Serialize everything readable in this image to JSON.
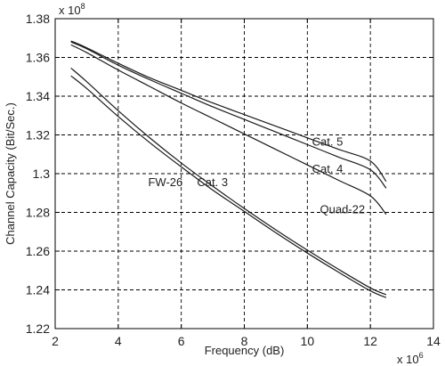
{
  "chart_data": {
    "type": "line",
    "title": "",
    "xlabel": "Frequency (dB)",
    "ylabel": "Channel Capacity (Bit/Sec.)",
    "x_multiplier_base": "x 10",
    "x_multiplier_exp": "6",
    "y_multiplier_base": "x 10",
    "y_multiplier_exp": "8",
    "xlim": [
      2,
      14
    ],
    "ylim": [
      1.22,
      1.38
    ],
    "x_ticks": [
      2,
      4,
      6,
      8,
      10,
      12,
      14
    ],
    "x_tick_labels": [
      "2",
      "4",
      "6",
      "8",
      "10",
      "12",
      "14"
    ],
    "y_ticks": [
      1.22,
      1.24,
      1.26,
      1.28,
      1.3,
      1.32,
      1.34,
      1.36,
      1.38
    ],
    "y_tick_labels": [
      "1.22",
      "1.24",
      "1.26",
      "1.28",
      "1.3",
      "1.32",
      "1.34",
      "1.36",
      "1.38"
    ],
    "grid": true,
    "series": [
      {
        "name": "Cat. 5",
        "x": [
          2.5,
          3,
          4,
          5,
          6,
          7,
          8,
          9,
          10,
          11,
          12,
          12.5
        ],
        "y": [
          1.3685,
          1.365,
          1.357,
          1.3495,
          1.343,
          1.3365,
          1.3305,
          1.3245,
          1.3185,
          1.3125,
          1.3065,
          1.296
        ]
      },
      {
        "name": "Cat. 4",
        "x": [
          2.5,
          3,
          4,
          5,
          6,
          7,
          8,
          9,
          10,
          11,
          12,
          12.5
        ],
        "y": [
          1.368,
          1.3645,
          1.356,
          1.3485,
          1.3415,
          1.3345,
          1.328,
          1.3215,
          1.315,
          1.3085,
          1.302,
          1.2925
        ]
      },
      {
        "name": "Quad-22",
        "x": [
          2.5,
          3,
          4,
          5,
          6,
          7,
          8,
          9,
          10,
          11,
          12,
          12.5
        ],
        "y": [
          1.3665,
          1.3625,
          1.3535,
          1.345,
          1.3365,
          1.3285,
          1.3205,
          1.3125,
          1.3045,
          1.2965,
          1.2885,
          1.279
        ]
      },
      {
        "name": "FW-26",
        "x": [
          2.5,
          3,
          4,
          5,
          6,
          7,
          8,
          9,
          10,
          11,
          12,
          12.5
        ],
        "y": [
          1.3545,
          1.3475,
          1.3325,
          1.3185,
          1.3055,
          1.2935,
          1.282,
          1.271,
          1.2605,
          1.2505,
          1.241,
          1.2375
        ]
      },
      {
        "name": "Cat. 3",
        "x": [
          2.5,
          3,
          4,
          5,
          6,
          7,
          8,
          9,
          10,
          11,
          12,
          12.5
        ],
        "y": [
          1.3505,
          1.344,
          1.3295,
          1.316,
          1.3035,
          1.2915,
          1.2805,
          1.2695,
          1.259,
          1.249,
          1.2395,
          1.236
        ]
      }
    ],
    "series_labels": [
      {
        "text": "Cat. 5",
        "x": 10.15,
        "y": 1.3145
      },
      {
        "text": "Cat. 4",
        "x": 10.15,
        "y": 1.3005
      },
      {
        "text": "Quad-22",
        "x": 10.4,
        "y": 1.2795
      },
      {
        "text": "FW-26",
        "x": 4.95,
        "y": 1.2935
      },
      {
        "text": "Cat. 3",
        "x": 6.5,
        "y": 1.2935
      }
    ]
  }
}
